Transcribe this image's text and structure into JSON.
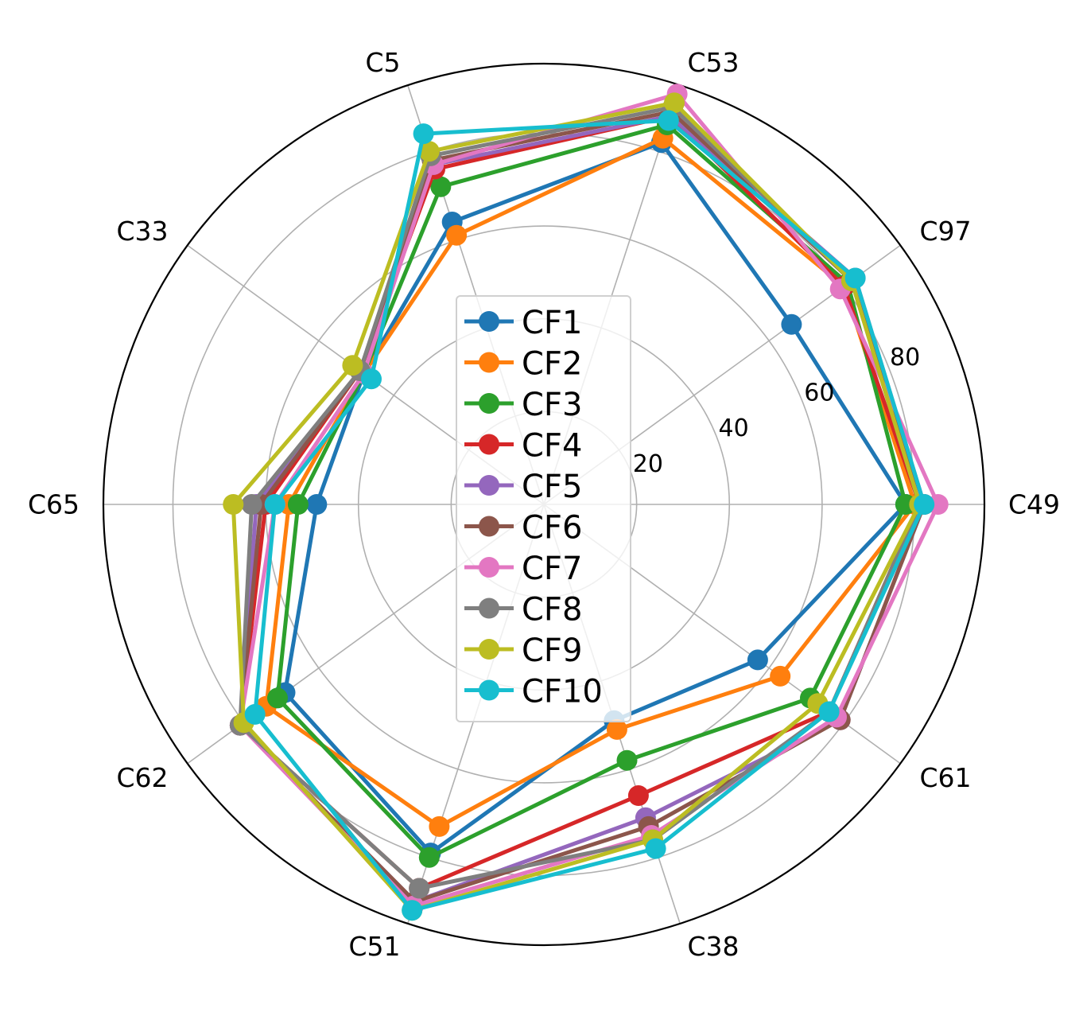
{
  "chart_data": {
    "type": "radar",
    "title": "",
    "categories": [
      "C49",
      "C97",
      "C53",
      "C5",
      "C33",
      "C65",
      "C62",
      "C51",
      "C38",
      "C61"
    ],
    "radial_ticks": [
      20,
      40,
      60,
      80
    ],
    "radial_range": [
      0,
      95
    ],
    "grid": true,
    "legend_position": "center",
    "series": [
      {
        "name": "CF1",
        "color": "#1f77b4",
        "values": [
          78,
          66,
          82,
          64,
          48,
          49,
          69,
          79,
          49,
          57
        ]
      },
      {
        "name": "CF2",
        "color": "#ff7f0e",
        "values": [
          80,
          80,
          83,
          61,
          48,
          55,
          74,
          73,
          51,
          63
        ]
      },
      {
        "name": "CF3",
        "color": "#2ca02c",
        "values": [
          78,
          81,
          86,
          72,
          48,
          53,
          71,
          80,
          58,
          71
        ]
      },
      {
        "name": "CF4",
        "color": "#d62728",
        "values": [
          81,
          80,
          88,
          76,
          49,
          60,
          81,
          87,
          66,
          76
        ]
      },
      {
        "name": "CF5",
        "color": "#9467bd",
        "values": [
          82,
          83,
          88,
          77,
          49,
          62,
          81,
          90,
          71,
          79
        ]
      },
      {
        "name": "CF6",
        "color": "#8c564b",
        "values": [
          82,
          82,
          89,
          78,
          49,
          61,
          81,
          90,
          73,
          79
        ]
      },
      {
        "name": "CF7",
        "color": "#e377c2",
        "values": [
          85,
          79,
          93,
          77,
          48,
          58,
          81,
          91,
          75,
          78
        ]
      },
      {
        "name": "CF8",
        "color": "#7f7f7f",
        "values": [
          81,
          82,
          90,
          79,
          49,
          63,
          81,
          87,
          76,
          76
        ]
      },
      {
        "name": "CF9",
        "color": "#bcbd22",
        "values": [
          81,
          82,
          91,
          80,
          51,
          67,
          80,
          92,
          76,
          73
        ]
      },
      {
        "name": "CF10",
        "color": "#17becf",
        "values": [
          82,
          83,
          87,
          84,
          46,
          58,
          77,
          92,
          78,
          76
        ]
      }
    ]
  }
}
